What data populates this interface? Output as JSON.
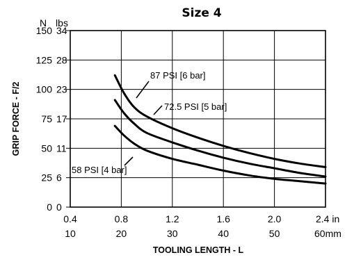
{
  "chart_data": {
    "type": "line",
    "title": "Size 4",
    "xlabel": "TOOLING LENGTH - L",
    "ylabel": "GRIP FORCE - F/2",
    "x_unit_primary": "in",
    "x_unit_secondary": "60mm",
    "y_unit_primary": "N",
    "y_unit_secondary": "lbs",
    "xlim": [
      0.4,
      2.4
    ],
    "ylim": [
      0,
      150
    ],
    "grid": true,
    "x_ticks_in": [
      "0.4",
      "0.8",
      "1.2",
      "1.6",
      "2.0",
      "2.4 in"
    ],
    "x_ticks_mm": [
      "10",
      "20",
      "30",
      "40",
      "50",
      "60mm"
    ],
    "x_tick_values": [
      0.4,
      0.8,
      1.2,
      1.6,
      2.0,
      2.4
    ],
    "y_ticks_N": [
      "0",
      "25",
      "50",
      "75",
      "100",
      "125",
      "150"
    ],
    "y_ticks_lbs": [
      "0",
      "6",
      "11",
      "17",
      "23",
      "28",
      "34"
    ],
    "y_tick_values": [
      0,
      25,
      50,
      75,
      100,
      125,
      150
    ],
    "series": [
      {
        "name": "87 PSI [6 bar]",
        "x": [
          0.75,
          0.82,
          0.9,
          1.0,
          1.2,
          1.4,
          1.6,
          1.8,
          2.0,
          2.2,
          2.4
        ],
        "y": [
          112,
          97,
          85,
          77,
          67,
          59,
          52,
          46,
          41,
          37,
          34
        ]
      },
      {
        "name": "72.5 PSI [5 bar]",
        "x": [
          0.75,
          0.82,
          0.9,
          1.0,
          1.2,
          1.4,
          1.6,
          1.8,
          2.0,
          2.2,
          2.4
        ],
        "y": [
          91,
          80,
          71,
          63,
          55,
          48,
          42,
          37,
          33,
          29,
          26
        ]
      },
      {
        "name": "58 PSI [4 bar]",
        "x": [
          0.75,
          0.82,
          0.9,
          1.0,
          1.2,
          1.4,
          1.6,
          1.8,
          2.0,
          2.2,
          2.4
        ],
        "y": [
          69,
          61,
          54,
          48,
          41,
          36,
          31,
          27,
          24,
          22,
          20
        ]
      }
    ]
  }
}
